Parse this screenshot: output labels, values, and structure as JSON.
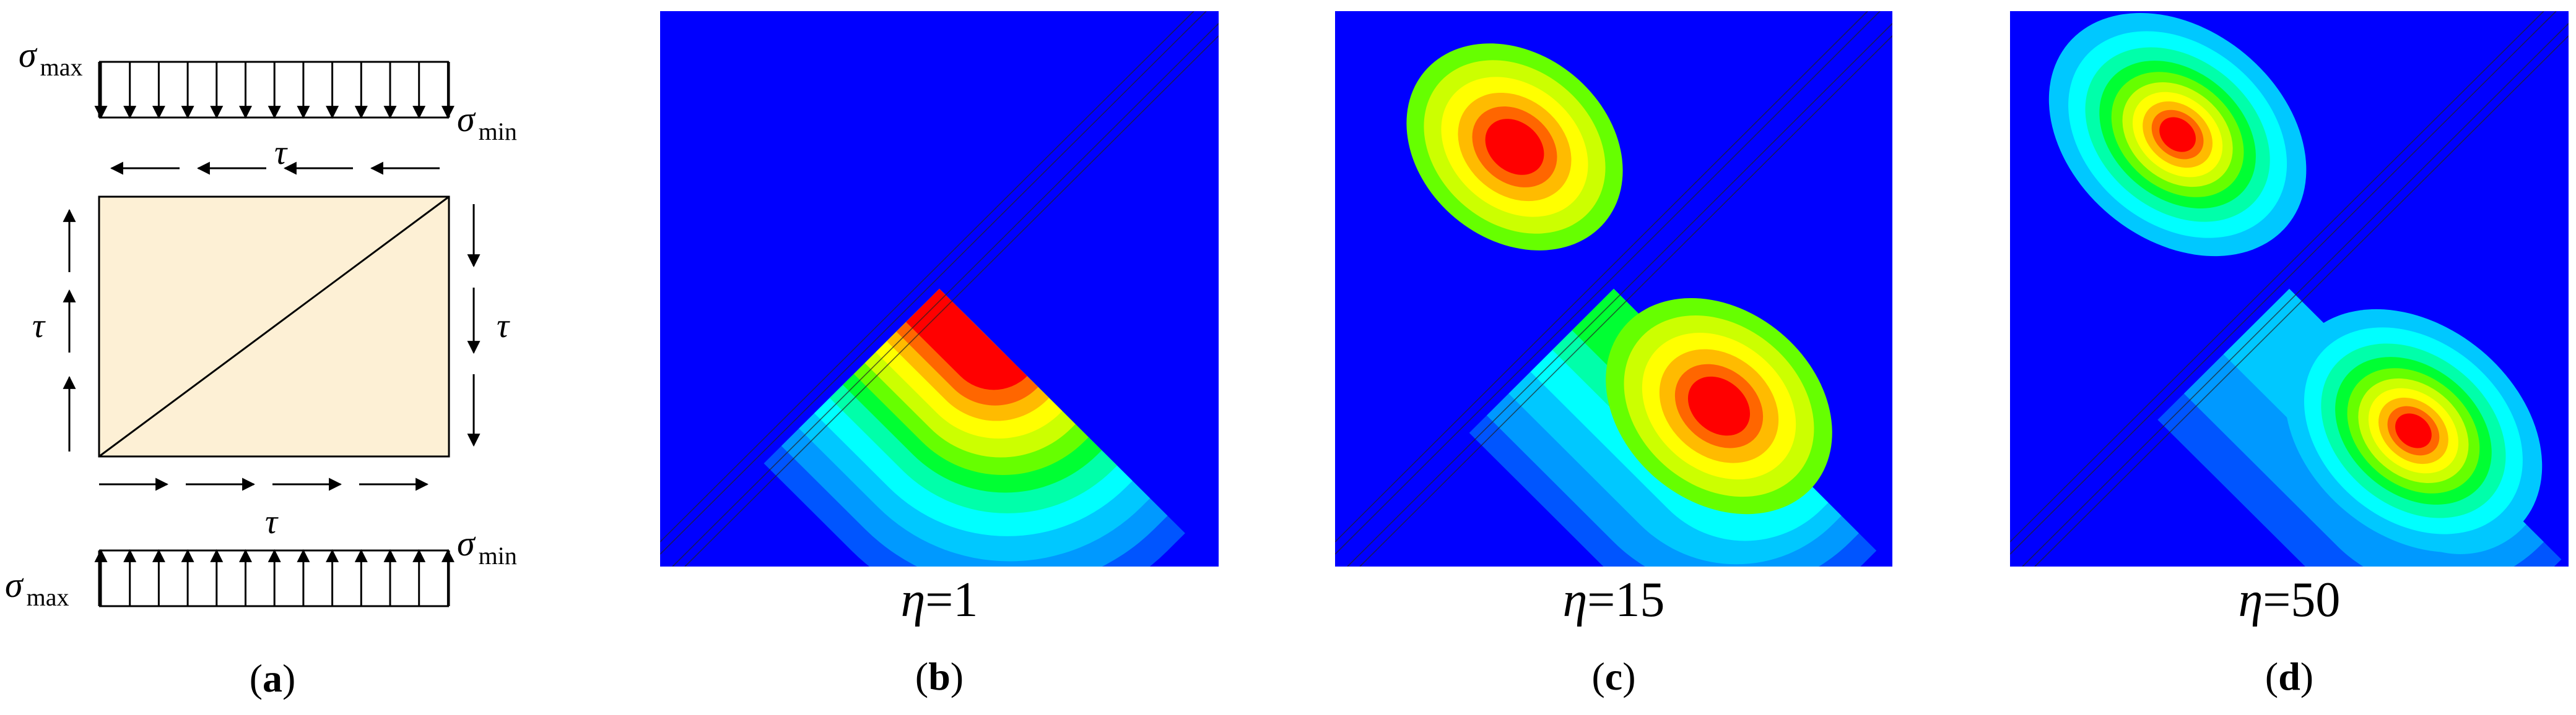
{
  "panel_a": {
    "sigma_max_top": "σ",
    "sigma_max_top_sub": "max",
    "sigma_min_top": "σ",
    "sigma_min_top_sub": "min",
    "tau_top": "τ",
    "tau_left": "τ",
    "tau_right": "τ",
    "tau_bottom": "τ",
    "sigma_min_bottom": "σ",
    "sigma_min_bottom_sub": "min",
    "sigma_max_bottom": "σ",
    "sigma_max_bottom_sub": "max",
    "label_open": "(",
    "label_letter": "a",
    "label_close": ")",
    "plate_color": "#fdf0d5"
  },
  "panel_b": {
    "eta_symbol": "η",
    "eta_value": "=1",
    "label_letter": "b"
  },
  "panel_c": {
    "eta_symbol": "η",
    "eta_value": "=15",
    "label_letter": "c"
  },
  "panel_d": {
    "eta_symbol": "η",
    "eta_value": "=50",
    "label_letter": "d"
  },
  "colormap": [
    "#0000ff",
    "#0055ff",
    "#0099ff",
    "#00c8ff",
    "#00ffff",
    "#00ffaa",
    "#00ff33",
    "#66ff00",
    "#ccff00",
    "#ffff00",
    "#ffbb00",
    "#ff6600",
    "#ff0000"
  ]
}
